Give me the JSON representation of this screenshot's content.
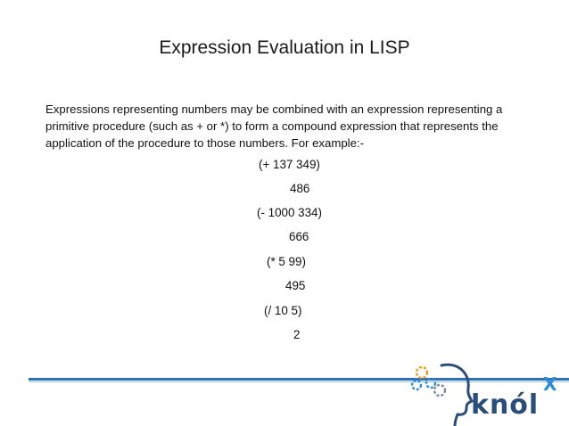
{
  "slide": {
    "title": "Expression Evaluation in LISP",
    "paragraph": "Expressions representing numbers may be combined with an expression representing a primitive procedure (such as + or *) to form a compound expression that represents the application of the procedure to those numbers. For example:-",
    "examples": [
      {
        "expression": "(+ 137 349)",
        "result": "486"
      },
      {
        "expression": "(- 1000 334)",
        "result": "666"
      },
      {
        "expression": "(* 5 99)",
        "result": "495"
      },
      {
        "expression": "(/ 10 5)",
        "result": "2"
      }
    ]
  },
  "logo": {
    "text": "knól",
    "superscript": "X",
    "icon": "gear-head-icon",
    "color_primary": "#2a4d7a",
    "color_accent": "#2a8fd6"
  },
  "colors": {
    "rule": "#2a6fc0",
    "text": "#111111"
  }
}
